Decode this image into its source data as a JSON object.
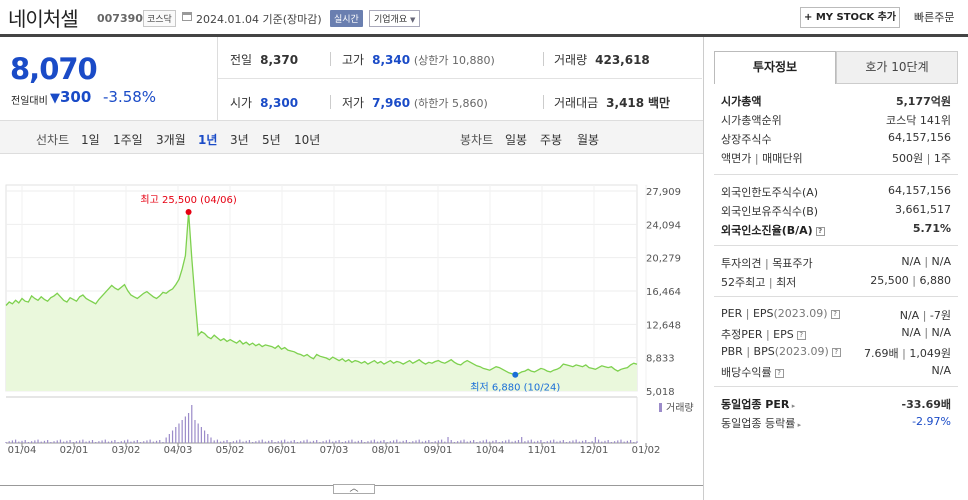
{
  "header": {
    "stock_name": "네이처셀",
    "stock_code": "007390",
    "market": "코스닥",
    "as_of": "2024.01.04  기준(장마감)",
    "realtime_label": "실시간",
    "profile_label": "기업개요",
    "mystock_label": "MY STOCK 추가",
    "quick_order_label": "빠른주문"
  },
  "price": {
    "current": "8,070",
    "change_label": "전일대비",
    "change": "300",
    "change_pct": "-3.58%",
    "color_down": "#1a4bc7"
  },
  "stats": {
    "prev_close_label": "전일",
    "prev_close": "8,370",
    "high_label": "고가",
    "high": "8,340",
    "upper_limit": "(상한가 10,880)",
    "volume_label": "거래량",
    "volume": "423,618",
    "open_label": "시가",
    "open": "8,300",
    "low_label": "저가",
    "low": "7,960",
    "lower_limit": "(하한가 5,860)",
    "trade_value_label": "거래대금",
    "trade_value": "3,418",
    "trade_value_unit": "백만"
  },
  "period_bar": {
    "line_chart_label": "선차트",
    "periods": [
      "1일",
      "1주일",
      "3개월",
      "1년",
      "3년",
      "5년",
      "10년"
    ],
    "active_period": "1년",
    "candle_chart_label": "봉차트",
    "candles": [
      "일봉",
      "주봉",
      "월봉"
    ]
  },
  "chart_data": {
    "type": "area",
    "title": "",
    "y_ticks": [
      "27,909",
      "24,094",
      "20,279",
      "16,464",
      "12,648",
      "8,833",
      "5,018"
    ],
    "y_tick_values": [
      27909,
      24094,
      20279,
      16464,
      12648,
      8833,
      5018
    ],
    "ylim": [
      5018,
      27909
    ],
    "x_ticks": [
      "01/04",
      "02/01",
      "03/02",
      "04/03",
      "05/02",
      "06/01",
      "07/03",
      "08/01",
      "09/01",
      "10/04",
      "11/01",
      "12/01",
      "01/02"
    ],
    "series": [
      {
        "values": [
          14800,
          15200,
          15000,
          15400,
          15100,
          15600,
          15300,
          15200,
          15900,
          15600,
          15400,
          15800,
          15500,
          15300,
          15700,
          15900,
          16200,
          15800,
          15400,
          15200,
          15700,
          15500,
          15300,
          15800,
          16000,
          15600,
          15400,
          15200,
          15000,
          15500,
          15900,
          16300,
          16700,
          17100,
          16800,
          16600,
          16900,
          17200,
          16500,
          16000,
          15800,
          15600,
          15900,
          16200,
          16400,
          16100,
          15800,
          15600,
          15900,
          16300,
          16200,
          16500,
          16700,
          17200,
          17800,
          19000,
          20500,
          25500,
          20200,
          15600,
          11400,
          11800,
          11600,
          11200,
          11000,
          11400,
          11100,
          10800,
          11000,
          10700,
          10900,
          10700,
          10500,
          10800,
          10400,
          10600,
          10300,
          10500,
          10200,
          10400,
          10100,
          10300,
          10200,
          10100,
          9900,
          10200,
          9800,
          10000,
          9700,
          9600,
          9500,
          9300,
          9200,
          9000,
          9200,
          8900,
          8700,
          9200,
          9000,
          8900,
          8800,
          8600,
          8900,
          8700,
          8500,
          8700,
          8400,
          8600,
          8300,
          8500,
          8400,
          8200,
          8400,
          8100,
          8300,
          8500,
          8200,
          8400,
          8100,
          8300,
          8500,
          8200,
          8400,
          8300,
          8100,
          8300,
          8500,
          8200,
          8400,
          8600,
          8300,
          8100,
          8300,
          8200,
          8400,
          8500,
          8300,
          8200,
          8400,
          8600,
          8300,
          8100,
          8000,
          8300,
          8500,
          8300,
          8100,
          7900,
          7800,
          7600,
          7500,
          7400,
          7600,
          7800,
          7700,
          7500,
          7300,
          7100,
          7000,
          6880,
          7000,
          7200,
          7300,
          7500,
          7300,
          7200,
          7400,
          7600,
          7500,
          7300,
          7200,
          7400,
          7500,
          7700,
          8100,
          8000,
          7900,
          7800,
          8000,
          7900,
          7800,
          8000,
          7700,
          7600,
          7500,
          7700,
          7900,
          7800,
          7700,
          7800,
          7500,
          7300,
          7500,
          7600,
          7700,
          8000,
          8200,
          8070
        ]
      }
    ],
    "volume_label": "거래량",
    "annotations": [
      {
        "label": "최고 25,500 (04/06)",
        "value": 25500,
        "color": "#e60012"
      },
      {
        "label": "최저 6,880 (10/24)",
        "value": 6880,
        "color": "#1a6ed8"
      }
    ],
    "line_color": "#7ed14f",
    "fill_color": "#eaf8dc"
  },
  "side": {
    "tab_active": "투자정보",
    "tab_other": "호가 10단계",
    "market_cap_label": "시가총액",
    "market_cap": "5,177억원",
    "market_cap_rank_label": "시가총액순위",
    "market_cap_rank": "코스닥 141위",
    "shares_label": "상장주식수",
    "shares": "64,157,156",
    "par_label": "액면가",
    "par_sep": "매매단위",
    "par": "500원",
    "unit": "1주",
    "foreign_limit_label": "외국인한도주식수(A)",
    "foreign_limit": "64,157,156",
    "foreign_hold_label": "외국인보유주식수(B)",
    "foreign_hold": "3,661,517",
    "foreign_ratio_label": "외국인소진율(B/A)",
    "foreign_ratio": "5.71%",
    "opinion_label": "투자의견",
    "target_label": "목표주가",
    "opinion": "N/A",
    "target": "N/A",
    "w52_label": "52주최고",
    "w52_low_label": "최저",
    "w52_high": "25,500",
    "w52_low": "6,880",
    "per_label": "PER",
    "eps_label": "EPS",
    "eps_period": "(2023.09)",
    "per": "N/A",
    "eps": "-7원",
    "est_per_label": "추정PER",
    "est_eps_label": "EPS",
    "est_per": "N/A",
    "est_eps": "N/A",
    "pbr_label": "PBR",
    "bps_label": "BPS",
    "bps_period": "(2023.09)",
    "pbr": "7.69배",
    "bps": "1,049원",
    "div_label": "배당수익률",
    "div": "N/A",
    "sector_per_label": "동일업종 PER",
    "sector_per": "-33.69배",
    "sector_chg_label": "동일업종 등락률",
    "sector_chg": "-2.97%"
  },
  "collapse_icon": "chevron-up-icon"
}
